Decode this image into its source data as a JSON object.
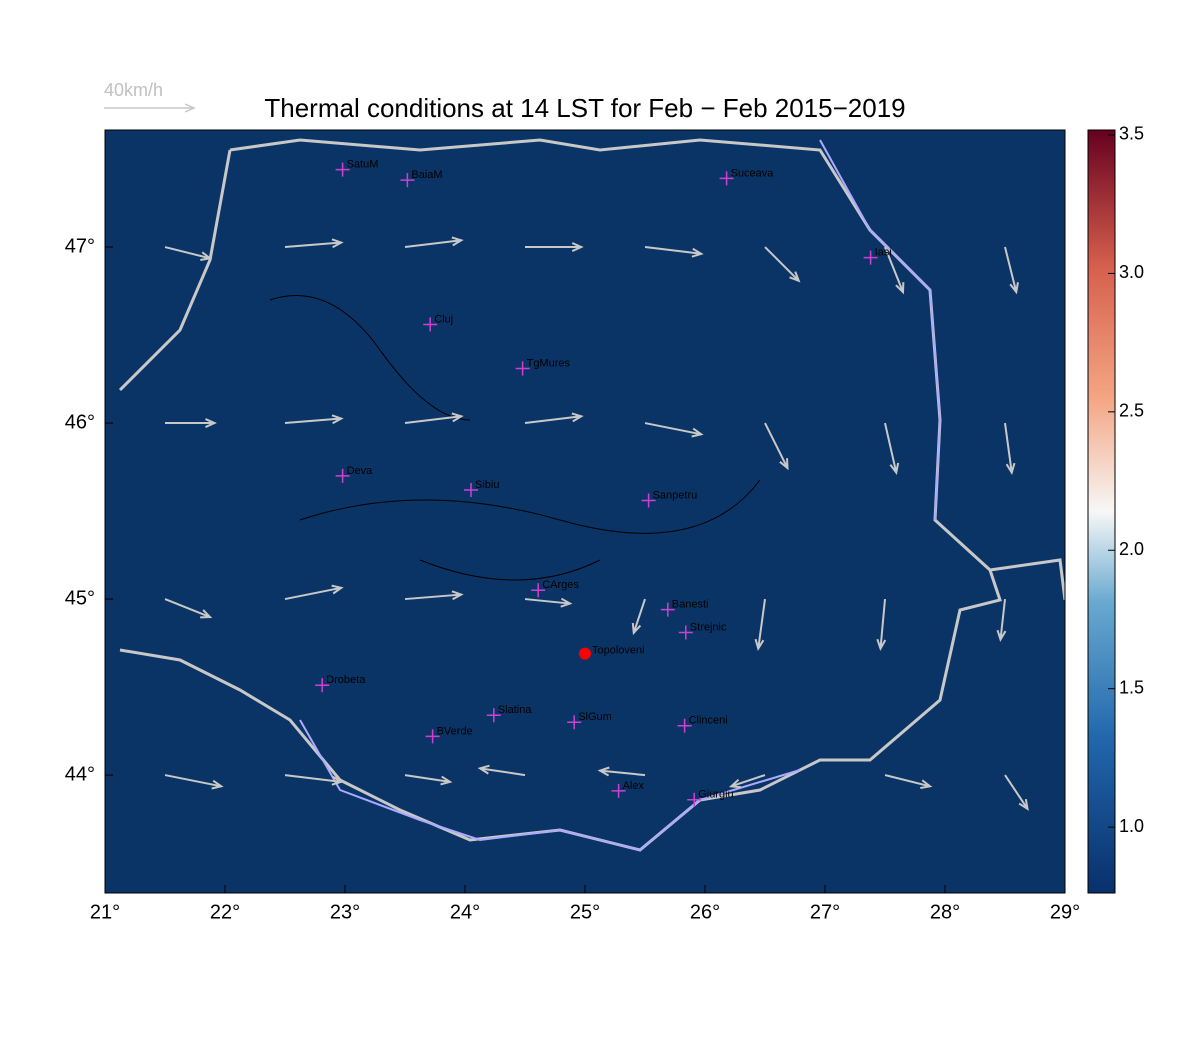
{
  "title": "Thermal conditions at 14 LST for Feb − Feb  2015−2019",
  "map": {
    "xlim": [
      21,
      29
    ],
    "ylim": [
      43.33,
      47.665
    ],
    "xticks": [
      {
        "value": 21,
        "label": "21°"
      },
      {
        "value": 22,
        "label": "22°"
      },
      {
        "value": 23,
        "label": "23°"
      },
      {
        "value": 24,
        "label": "24°"
      },
      {
        "value": 25,
        "label": "25°"
      },
      {
        "value": 26,
        "label": "26°"
      },
      {
        "value": 27,
        "label": "27°"
      },
      {
        "value": 28,
        "label": "28°"
      },
      {
        "value": 29,
        "label": "29°"
      }
    ],
    "yticks": [
      {
        "value": 44,
        "label": "44°"
      },
      {
        "value": 45,
        "label": "45°"
      },
      {
        "value": 46,
        "label": "46°"
      },
      {
        "value": 47,
        "label": "47°"
      }
    ],
    "background": "#0b3466",
    "cities": [
      {
        "name": "SatuM",
        "lon": 22.98,
        "lat": 47.44
      },
      {
        "name": "BaiaM",
        "lon": 23.52,
        "lat": 47.38
      },
      {
        "name": "Suceava",
        "lon": 26.18,
        "lat": 47.39
      },
      {
        "name": "Iasi",
        "lon": 27.38,
        "lat": 46.94
      },
      {
        "name": "Cluj",
        "lon": 23.71,
        "lat": 46.56
      },
      {
        "name": "TgMures",
        "lon": 24.48,
        "lat": 46.31
      },
      {
        "name": "Deva",
        "lon": 22.98,
        "lat": 45.7
      },
      {
        "name": "Sibiu",
        "lon": 24.05,
        "lat": 45.62
      },
      {
        "name": "Sanpetru",
        "lon": 25.53,
        "lat": 45.56
      },
      {
        "name": "CArges",
        "lon": 24.61,
        "lat": 45.05
      },
      {
        "name": "Banesti",
        "lon": 25.69,
        "lat": 44.94
      },
      {
        "name": "Strejnic",
        "lon": 25.84,
        "lat": 44.81
      },
      {
        "name": "Drobeta",
        "lon": 22.81,
        "lat": 44.51
      },
      {
        "name": "Slatina",
        "lon": 24.24,
        "lat": 44.34
      },
      {
        "name": "SlGum",
        "lon": 24.91,
        "lat": 44.3
      },
      {
        "name": "Clinceni",
        "lon": 25.83,
        "lat": 44.28
      },
      {
        "name": "BVerde",
        "lon": 23.73,
        "lat": 44.22
      },
      {
        "name": "Alex",
        "lon": 25.28,
        "lat": 43.91
      },
      {
        "name": "Giurgiu",
        "lon": 25.91,
        "lat": 43.86
      }
    ],
    "site": {
      "name": "Topoloveni",
      "lon": 25.0,
      "lat": 44.69,
      "color": "#ff0000"
    },
    "wind": {
      "reference": {
        "value": 40,
        "label": "40km/h"
      },
      "color": "#c8c8c8",
      "lon": [
        21.5,
        22.5,
        23.5,
        24.5,
        25.5,
        26.5,
        27.5,
        28.5,
        21.5,
        22.5,
        23.5,
        24.5,
        25.5,
        26.5,
        27.5,
        28.5,
        21.5,
        22.5,
        23.5,
        24.5,
        25.5,
        26.5,
        27.5,
        28.5,
        21.5,
        22.5,
        23.5,
        24.5,
        25.5,
        26.5,
        27.5,
        28.5
      ],
      "lat": [
        47,
        47,
        47,
        47,
        47,
        47,
        47,
        47,
        46,
        46,
        46,
        46,
        46,
        46,
        46,
        46,
        45,
        45,
        45,
        45,
        45,
        45,
        45,
        45,
        44,
        44,
        44,
        44,
        44,
        44,
        44,
        44
      ],
      "u": [
        20,
        25,
        25,
        25,
        25,
        15,
        8,
        5,
        22,
        25,
        25,
        25,
        25,
        10,
        5,
        3,
        20,
        25,
        25,
        20,
        -5,
        -3,
        -2,
        -2,
        25,
        25,
        20,
        -20,
        -20,
        -15,
        20,
        10
      ],
      "v": [
        -5,
        2,
        3,
        0,
        -3,
        -15,
        -20,
        -20,
        0,
        2,
        3,
        3,
        -5,
        -20,
        -22,
        -22,
        -8,
        5,
        2,
        -2,
        -15,
        -22,
        -22,
        -18,
        -5,
        -3,
        -3,
        3,
        2,
        -5,
        -5,
        -15
      ]
    }
  },
  "colorbar": {
    "clim": [
      0.762,
      3.518
    ],
    "ticks": [
      {
        "value": 1,
        "label": "1.0"
      },
      1.5,
      {
        "value": 2,
        "label": "2.0"
      },
      2.5,
      {
        "value": 3,
        "label": "3.0"
      },
      3.5
    ]
  }
}
